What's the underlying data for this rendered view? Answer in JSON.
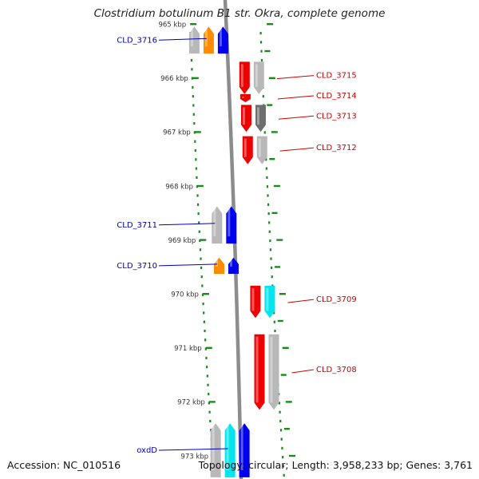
{
  "title": "Clostridium botulinum B1 str. Okra, complete genome",
  "footer": {
    "accession": "Accession: NC_010516",
    "topology": "Topology: circular; Length: 3,958,233 bp; Genes: 3,761"
  },
  "colors": {
    "tick": "#1a8a1a",
    "forward_label": "#cc0000",
    "reverse_label": "#0000bb",
    "backbone": "#8c8c8c"
  },
  "ruler": [
    {
      "kbp": 965,
      "label": "965 kbp"
    },
    {
      "kbp": 966,
      "label": "966 kbp"
    },
    {
      "kbp": 967,
      "label": "967 kbp"
    },
    {
      "kbp": 968,
      "label": "968 kbp"
    },
    {
      "kbp": 969,
      "label": "969 kbp"
    },
    {
      "kbp": 970,
      "label": "970 kbp"
    },
    {
      "kbp": 971,
      "label": "971 kbp"
    },
    {
      "kbp": 972,
      "label": "972 kbp"
    },
    {
      "kbp": 973,
      "label": "973 kbp"
    }
  ],
  "genes": [
    {
      "name": "CLD_3716",
      "strand": "-",
      "color": "#0000ee",
      "start": 965.05,
      "end": 965.55,
      "labelled": true
    },
    {
      "name": "",
      "strand": "-",
      "color": "#ff8c00",
      "start": 965.05,
      "end": 965.55,
      "labelled": false
    },
    {
      "name": "",
      "strand": "-",
      "color": "#b8b8b8",
      "start": 965.05,
      "end": 965.55,
      "labelled": false
    },
    {
      "name": "CLD_3715",
      "strand": "+",
      "color": "#ee0000",
      "start": 965.7,
      "end": 966.3,
      "labelled": true
    },
    {
      "name": "",
      "strand": "+",
      "color": "#b8b8b8",
      "start": 965.7,
      "end": 966.3,
      "labelled": false
    },
    {
      "name": "CLD_3714",
      "strand": "+",
      "color": "#ee0000",
      "start": 966.3,
      "end": 966.45,
      "labelled": true
    },
    {
      "name": "CLD_3713",
      "strand": "+",
      "color": "#ee0000",
      "start": 966.5,
      "end": 967.0,
      "labelled": true
    },
    {
      "name": "",
      "strand": "+",
      "color": "#6e6e6e",
      "start": 966.5,
      "end": 967.0,
      "labelled": false
    },
    {
      "name": "CLD_3712",
      "strand": "+",
      "color": "#ee0000",
      "start": 967.08,
      "end": 967.6,
      "labelled": true
    },
    {
      "name": "",
      "strand": "+",
      "color": "#b8b8b8",
      "start": 967.08,
      "end": 967.6,
      "labelled": false
    },
    {
      "name": "CLD_3711",
      "strand": "-",
      "color": "#0000ee",
      "start": 968.38,
      "end": 969.07,
      "labelled": true
    },
    {
      "name": "",
      "strand": "-",
      "color": "#b8b8b8",
      "start": 968.38,
      "end": 969.07,
      "labelled": false
    },
    {
      "name": "CLD_3710",
      "strand": "-",
      "color": "#0000ee",
      "start": 969.33,
      "end": 969.63,
      "labelled": true
    },
    {
      "name": "",
      "strand": "-",
      "color": "#ff8c00",
      "start": 969.33,
      "end": 969.63,
      "labelled": false
    },
    {
      "name": "CLD_3709",
      "strand": "+",
      "color": "#ee0000",
      "start": 969.85,
      "end": 970.45,
      "labelled": true
    },
    {
      "name": "",
      "strand": "+",
      "color": "#00e5ee",
      "start": 969.85,
      "end": 970.45,
      "labelled": false
    },
    {
      "name": "CLD_3708",
      "strand": "+",
      "color": "#ee0000",
      "start": 970.75,
      "end": 972.15,
      "labelled": true
    },
    {
      "name": "",
      "strand": "+",
      "color": "#b8b8b8",
      "start": 970.75,
      "end": 972.15,
      "labelled": false
    },
    {
      "name": "oxdD",
      "strand": "-",
      "color": "#0000ee",
      "start": 972.4,
      "end": 973.4,
      "labelled": true
    },
    {
      "name": "",
      "strand": "-",
      "color": "#00e5ee",
      "start": 972.4,
      "end": 973.4,
      "labelled": false
    },
    {
      "name": "",
      "strand": "-",
      "color": "#b8b8b8",
      "start": 972.4,
      "end": 973.4,
      "labelled": false
    }
  ]
}
